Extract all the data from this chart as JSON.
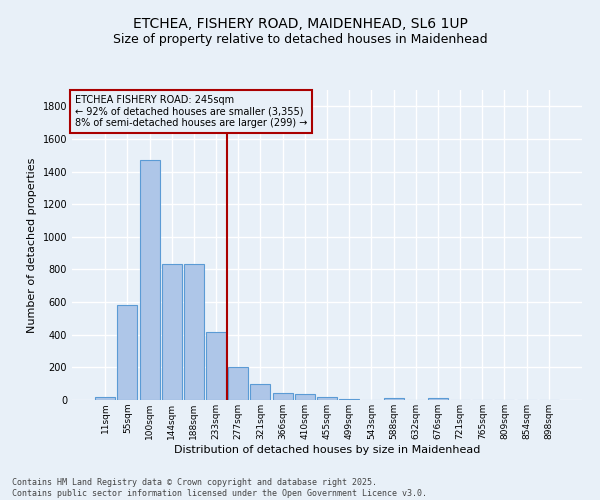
{
  "title_line1": "ETCHEA, FISHERY ROAD, MAIDENHEAD, SL6 1UP",
  "title_line2": "Size of property relative to detached houses in Maidenhead",
  "xlabel": "Distribution of detached houses by size in Maidenhead",
  "ylabel": "Number of detached properties",
  "categories": [
    "11sqm",
    "55sqm",
    "100sqm",
    "144sqm",
    "188sqm",
    "233sqm",
    "277sqm",
    "321sqm",
    "366sqm",
    "410sqm",
    "455sqm",
    "499sqm",
    "543sqm",
    "588sqm",
    "632sqm",
    "676sqm",
    "721sqm",
    "765sqm",
    "809sqm",
    "854sqm",
    "898sqm"
  ],
  "values": [
    20,
    585,
    1470,
    835,
    835,
    415,
    200,
    100,
    40,
    35,
    20,
    5,
    0,
    15,
    0,
    10,
    0,
    0,
    0,
    0,
    0
  ],
  "bar_color": "#aec6e8",
  "bar_edge_color": "#5b9bd5",
  "vline_x_index": 6,
  "vline_color": "#aa0000",
  "annotation_text": "ETCHEA FISHERY ROAD: 245sqm\n← 92% of detached houses are smaller (3,355)\n8% of semi-detached houses are larger (299) →",
  "annotation_box_color": "#aa0000",
  "ylim": [
    0,
    1900
  ],
  "yticks": [
    0,
    200,
    400,
    600,
    800,
    1000,
    1200,
    1400,
    1600,
    1800
  ],
  "background_color": "#e8f0f8",
  "grid_color": "#ffffff",
  "footer_line1": "Contains HM Land Registry data © Crown copyright and database right 2025.",
  "footer_line2": "Contains public sector information licensed under the Open Government Licence v3.0.",
  "title_fontsize": 10,
  "subtitle_fontsize": 9,
  "tick_fontsize": 6.5,
  "label_fontsize": 8,
  "annotation_fontsize": 7,
  "footer_fontsize": 6
}
